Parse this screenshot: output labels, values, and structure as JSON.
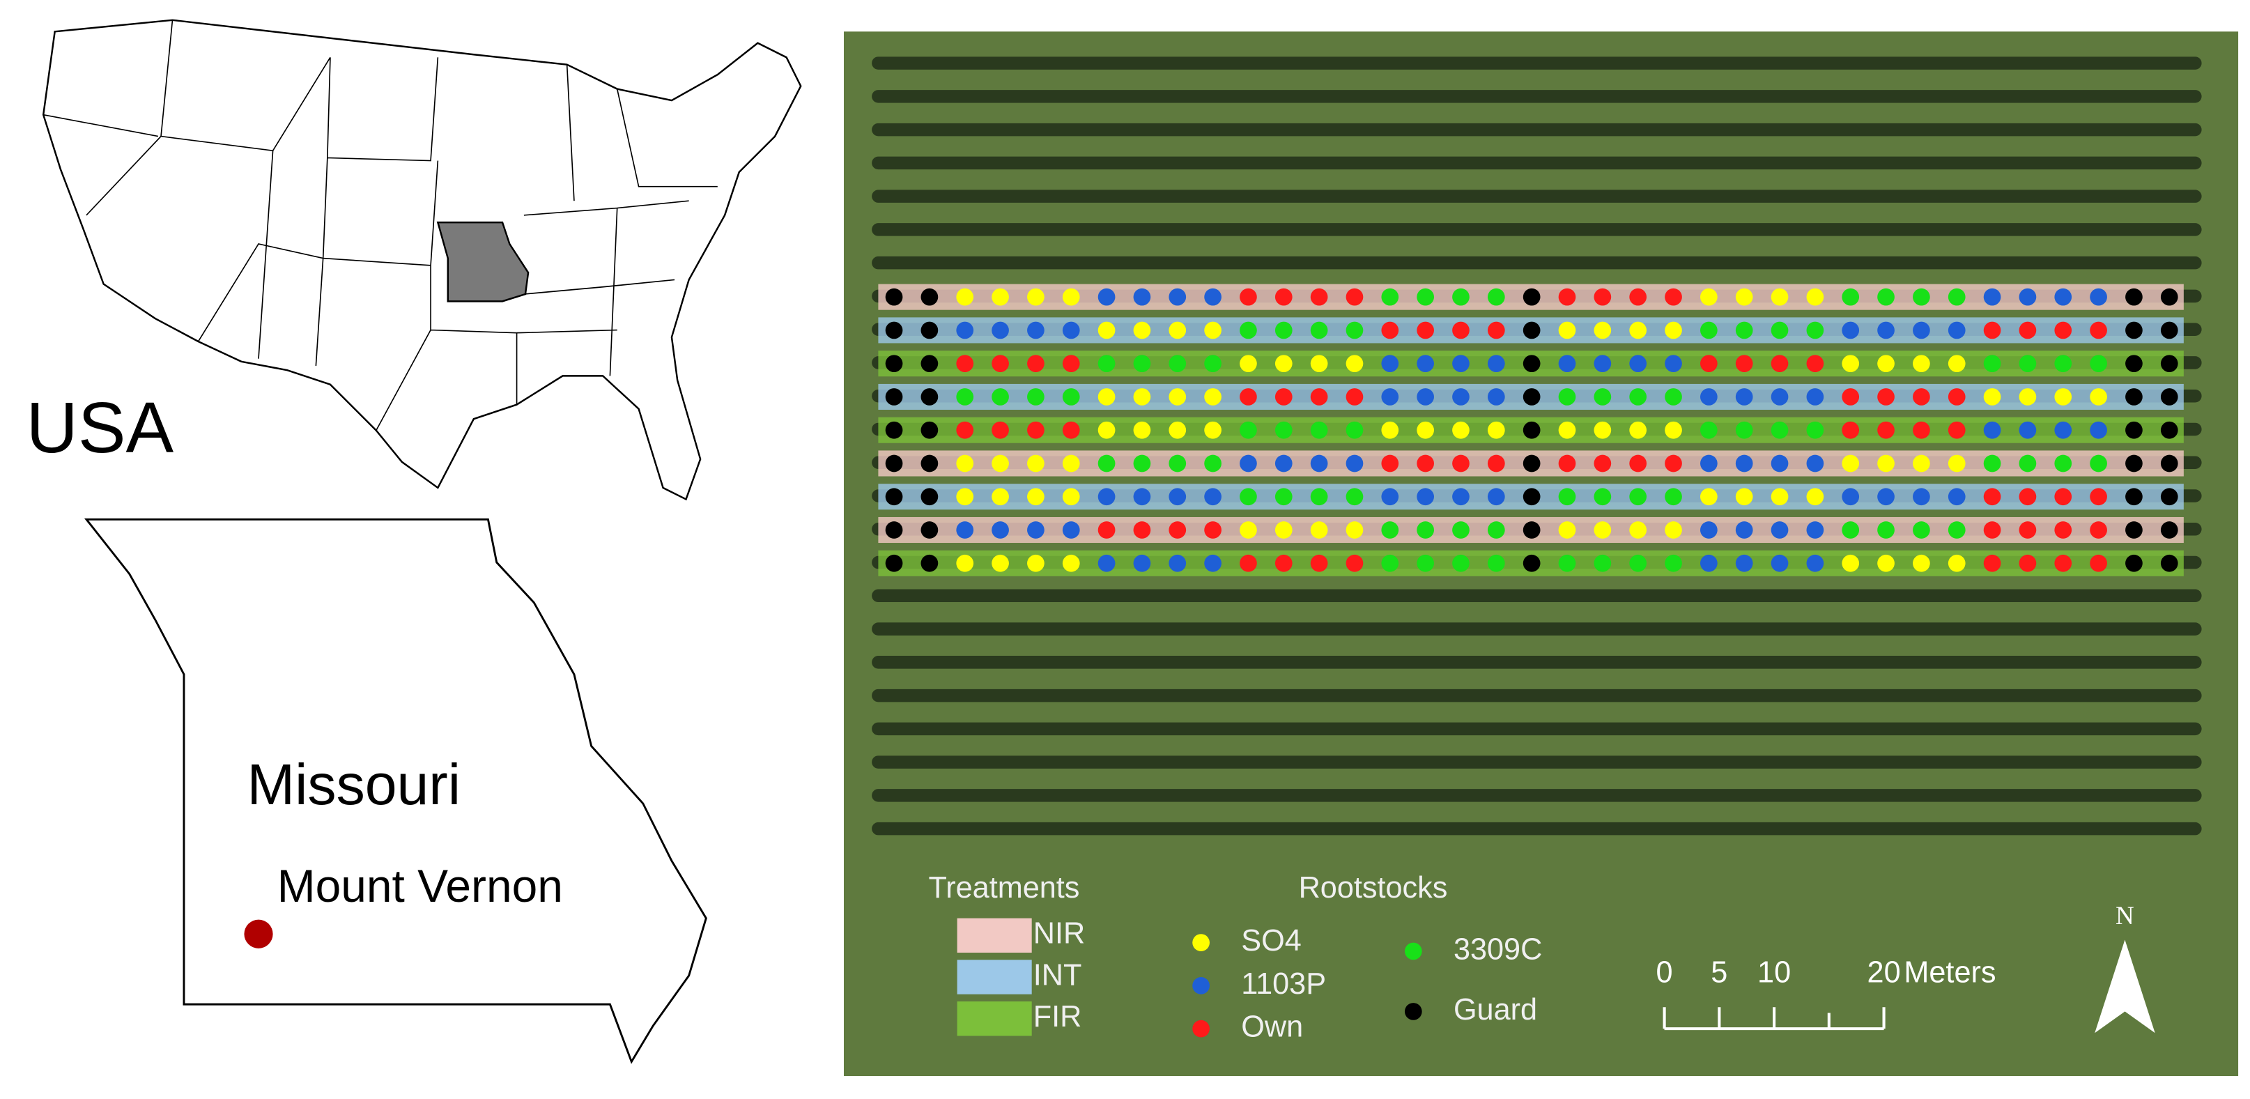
{
  "usa_map": {
    "country_label": "USA",
    "state_label": "Missouri",
    "site_label": "Mount Vernon"
  },
  "legend": {
    "treatments": {
      "title": "Treatments",
      "items": [
        {
          "label": "NIR",
          "color": "#f2c9c4"
        },
        {
          "label": "INT",
          "color": "#9cc8e8"
        },
        {
          "label": "FIR",
          "color": "#7cbf3a"
        }
      ]
    },
    "rootstocks": {
      "title": "Rootstocks",
      "items": [
        {
          "label": "SO4",
          "color": "#ffff00"
        },
        {
          "label": "1103P",
          "color": "#1f5fd6"
        },
        {
          "label": "Own",
          "color": "#ff1a1a"
        },
        {
          "label": "3309C",
          "color": "#18e018"
        },
        {
          "label": "Guard",
          "color": "#000000"
        }
      ]
    }
  },
  "scale_bar": {
    "ticks": [
      0,
      5,
      10,
      20
    ],
    "minor_ticks": [
      15
    ],
    "unit": "Meters"
  },
  "north_arrow": "N"
}
